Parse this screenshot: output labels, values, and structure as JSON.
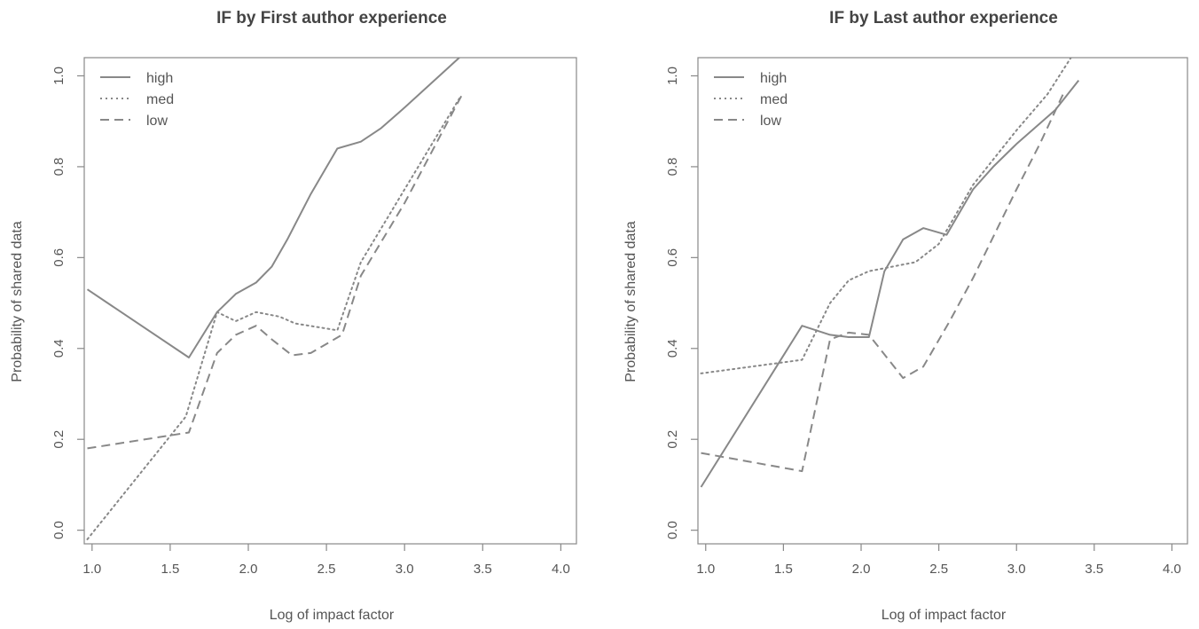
{
  "chart_data": [
    {
      "type": "line",
      "title": "IF by First author experience",
      "xlabel": "Log of impact factor",
      "ylabel": "Probability of shared data",
      "xlim": [
        0.95,
        4.1
      ],
      "ylim": [
        -0.03,
        1.04
      ],
      "xticks": [
        1.0,
        1.5,
        2.0,
        2.5,
        3.0,
        3.5,
        4.0
      ],
      "xtick_labels": [
        "1.0",
        "1.5",
        "2.0",
        "2.5",
        "3.0",
        "3.5",
        "4.0"
      ],
      "yticks": [
        0.0,
        0.2,
        0.4,
        0.6,
        0.8,
        1.0
      ],
      "ytick_labels": [
        "0.0",
        "0.2",
        "0.4",
        "0.6",
        "0.8",
        "1.0"
      ],
      "legend_position": "top-left",
      "grid": false,
      "series": [
        {
          "name": "high",
          "style": "solid",
          "points": [
            [
              0.97,
              0.53
            ],
            [
              1.62,
              0.38
            ],
            [
              1.8,
              0.48
            ],
            [
              1.92,
              0.52
            ],
            [
              2.05,
              0.545
            ],
            [
              2.15,
              0.58
            ],
            [
              2.25,
              0.64
            ],
            [
              2.4,
              0.74
            ],
            [
              2.57,
              0.84
            ],
            [
              2.72,
              0.855
            ],
            [
              2.85,
              0.885
            ],
            [
              3.0,
              0.93
            ],
            [
              3.35,
              1.04
            ]
          ]
        },
        {
          "name": "med",
          "style": "dotted",
          "points": [
            [
              0.97,
              -0.02
            ],
            [
              1.6,
              0.25
            ],
            [
              1.8,
              0.48
            ],
            [
              1.92,
              0.46
            ],
            [
              2.05,
              0.48
            ],
            [
              2.2,
              0.47
            ],
            [
              2.3,
              0.455
            ],
            [
              2.57,
              0.44
            ],
            [
              2.72,
              0.59
            ],
            [
              3.0,
              0.75
            ],
            [
              3.35,
              0.95
            ]
          ]
        },
        {
          "name": "low",
          "style": "dashed",
          "points": [
            [
              0.97,
              0.18
            ],
            [
              1.62,
              0.215
            ],
            [
              1.8,
              0.39
            ],
            [
              1.92,
              0.43
            ],
            [
              2.05,
              0.45
            ],
            [
              2.15,
              0.42
            ],
            [
              2.28,
              0.385
            ],
            [
              2.4,
              0.39
            ],
            [
              2.6,
              0.43
            ],
            [
              2.72,
              0.56
            ],
            [
              3.0,
              0.72
            ],
            [
              3.37,
              0.96
            ]
          ]
        }
      ]
    },
    {
      "type": "line",
      "title": "IF by Last author experience",
      "xlabel": "Log of impact factor",
      "ylabel": "Probability of shared data",
      "xlim": [
        0.95,
        4.1
      ],
      "ylim": [
        -0.03,
        1.04
      ],
      "xticks": [
        1.0,
        1.5,
        2.0,
        2.5,
        3.0,
        3.5,
        4.0
      ],
      "xtick_labels": [
        "1.0",
        "1.5",
        "2.0",
        "2.5",
        "3.0",
        "3.5",
        "4.0"
      ],
      "yticks": [
        0.0,
        0.2,
        0.4,
        0.6,
        0.8,
        1.0
      ],
      "ytick_labels": [
        "0.0",
        "0.2",
        "0.4",
        "0.6",
        "0.8",
        "1.0"
      ],
      "legend_position": "top-left",
      "grid": false,
      "series": [
        {
          "name": "high",
          "style": "solid",
          "points": [
            [
              0.97,
              0.095
            ],
            [
              1.62,
              0.45
            ],
            [
              1.8,
              0.43
            ],
            [
              1.92,
              0.425
            ],
            [
              2.05,
              0.425
            ],
            [
              2.15,
              0.57
            ],
            [
              2.27,
              0.64
            ],
            [
              2.4,
              0.665
            ],
            [
              2.55,
              0.65
            ],
            [
              2.72,
              0.75
            ],
            [
              2.85,
              0.8
            ],
            [
              3.0,
              0.85
            ],
            [
              3.25,
              0.925
            ],
            [
              3.4,
              0.99
            ]
          ]
        },
        {
          "name": "med",
          "style": "dotted",
          "points": [
            [
              0.97,
              0.345
            ],
            [
              1.62,
              0.375
            ],
            [
              1.8,
              0.5
            ],
            [
              1.92,
              0.55
            ],
            [
              2.05,
              0.57
            ],
            [
              2.2,
              0.58
            ],
            [
              2.35,
              0.59
            ],
            [
              2.5,
              0.63
            ],
            [
              2.72,
              0.76
            ],
            [
              3.0,
              0.88
            ],
            [
              3.2,
              0.96
            ],
            [
              3.35,
              1.04
            ]
          ]
        },
        {
          "name": "low",
          "style": "dashed",
          "points": [
            [
              0.97,
              0.17
            ],
            [
              1.62,
              0.13
            ],
            [
              1.8,
              0.42
            ],
            [
              1.92,
              0.435
            ],
            [
              2.05,
              0.43
            ],
            [
              2.27,
              0.335
            ],
            [
              2.4,
              0.36
            ],
            [
              2.57,
              0.46
            ],
            [
              2.72,
              0.555
            ],
            [
              3.0,
              0.75
            ],
            [
              3.15,
              0.85
            ],
            [
              3.3,
              0.96
            ]
          ]
        }
      ]
    }
  ]
}
